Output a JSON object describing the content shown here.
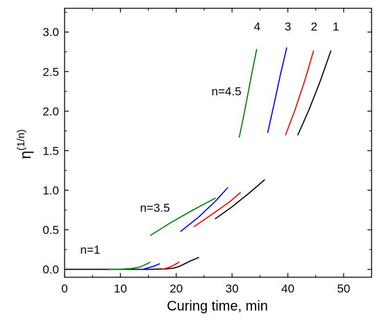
{
  "chart_data": {
    "type": "line",
    "xlabel": "Curing time, min",
    "ylabel_main": "η",
    "ylabel_sup": "(1/n)",
    "xlim": [
      0,
      55
    ],
    "ylim": [
      -0.1,
      3.3
    ],
    "x_ticks": [
      "0",
      "10",
      "20",
      "30",
      "40",
      "50"
    ],
    "y_ticks": [
      "0.0",
      "0.5",
      "1.0",
      "1.5",
      "2.0",
      "2.5",
      "3.0"
    ],
    "x_tick_values": [
      0,
      10,
      20,
      30,
      40,
      50
    ],
    "y_tick_values": [
      0,
      0.5,
      1.0,
      1.5,
      2.0,
      2.5,
      3.0
    ],
    "grid": false,
    "curve_labels": [
      {
        "text": "4",
        "color": "#000000",
        "x": 34.5,
        "y": 3.02
      },
      {
        "text": "3",
        "color": "#000000",
        "x": 40.0,
        "y": 3.02
      },
      {
        "text": "2",
        "color": "#000000",
        "x": 44.7,
        "y": 3.02
      },
      {
        "text": "1",
        "color": "#000000",
        "x": 48.6,
        "y": 3.02
      }
    ],
    "annotations": [
      {
        "text": "n=4.5",
        "x": 29.0,
        "y": 2.2
      },
      {
        "text": "n=3.5",
        "x": 16.2,
        "y": 0.73
      },
      {
        "text": "n=1",
        "x": 4.6,
        "y": 0.2
      }
    ],
    "series": [
      {
        "color": "#000000",
        "group": "n=1",
        "x": [
          0,
          15,
          18,
          19.5,
          20.5,
          21.5,
          22.5,
          23.5,
          24.0
        ],
        "y": [
          0,
          0,
          0.004,
          0.015,
          0.035,
          0.07,
          0.105,
          0.135,
          0.15
        ]
      },
      {
        "color": "#ff0000",
        "group": "n=1",
        "x": [
          17.5,
          18.5,
          19.5,
          20.5
        ],
        "y": [
          0,
          0.02,
          0.05,
          0.09
        ]
      },
      {
        "color": "#0000ff",
        "group": "n=1",
        "x": [
          14.0,
          15.0,
          16.0,
          17.0
        ],
        "y": [
          0,
          0.02,
          0.04,
          0.07
        ]
      },
      {
        "color": "#008000",
        "group": "n=1",
        "x": [
          8.0,
          10.0,
          12.0,
          13.5,
          14.5,
          15.3
        ],
        "y": [
          0,
          0.002,
          0.01,
          0.03,
          0.06,
          0.09
        ]
      },
      {
        "color": "#008000",
        "group": "n=3.5",
        "x": [
          15.4,
          19.0,
          23.0,
          27.0
        ],
        "y": [
          0.43,
          0.59,
          0.75,
          0.9
        ]
      },
      {
        "color": "#0000ff",
        "group": "n=3.5",
        "x": [
          20.8,
          24.0,
          27.0,
          29.2
        ],
        "y": [
          0.48,
          0.66,
          0.86,
          1.03
        ]
      },
      {
        "color": "#ff0000",
        "group": "n=3.5",
        "x": [
          23.2,
          26.5,
          29.5,
          31.5
        ],
        "y": [
          0.54,
          0.7,
          0.85,
          0.97
        ]
      },
      {
        "color": "#000000",
        "group": "n=3.5",
        "x": [
          27.0,
          30.0,
          33.0,
          35.8
        ],
        "y": [
          0.64,
          0.79,
          0.96,
          1.13
        ]
      },
      {
        "color": "#008000",
        "group": "n=4.5",
        "x": [
          31.3,
          32.2,
          33.2,
          34.4
        ],
        "y": [
          1.67,
          1.98,
          2.35,
          2.78
        ]
      },
      {
        "color": "#0000ff",
        "group": "n=4.5",
        "x": [
          36.4,
          37.5,
          38.6,
          39.8
        ],
        "y": [
          1.73,
          2.08,
          2.44,
          2.8
        ]
      },
      {
        "color": "#ff0000",
        "group": "n=4.5",
        "x": [
          39.6,
          41.3,
          43.0,
          44.6
        ],
        "y": [
          1.7,
          2.02,
          2.38,
          2.76
        ]
      },
      {
        "color": "#000000",
        "group": "n=4.5",
        "x": [
          41.8,
          43.8,
          45.8,
          47.7
        ],
        "y": [
          1.7,
          2.02,
          2.38,
          2.76
        ]
      }
    ]
  }
}
